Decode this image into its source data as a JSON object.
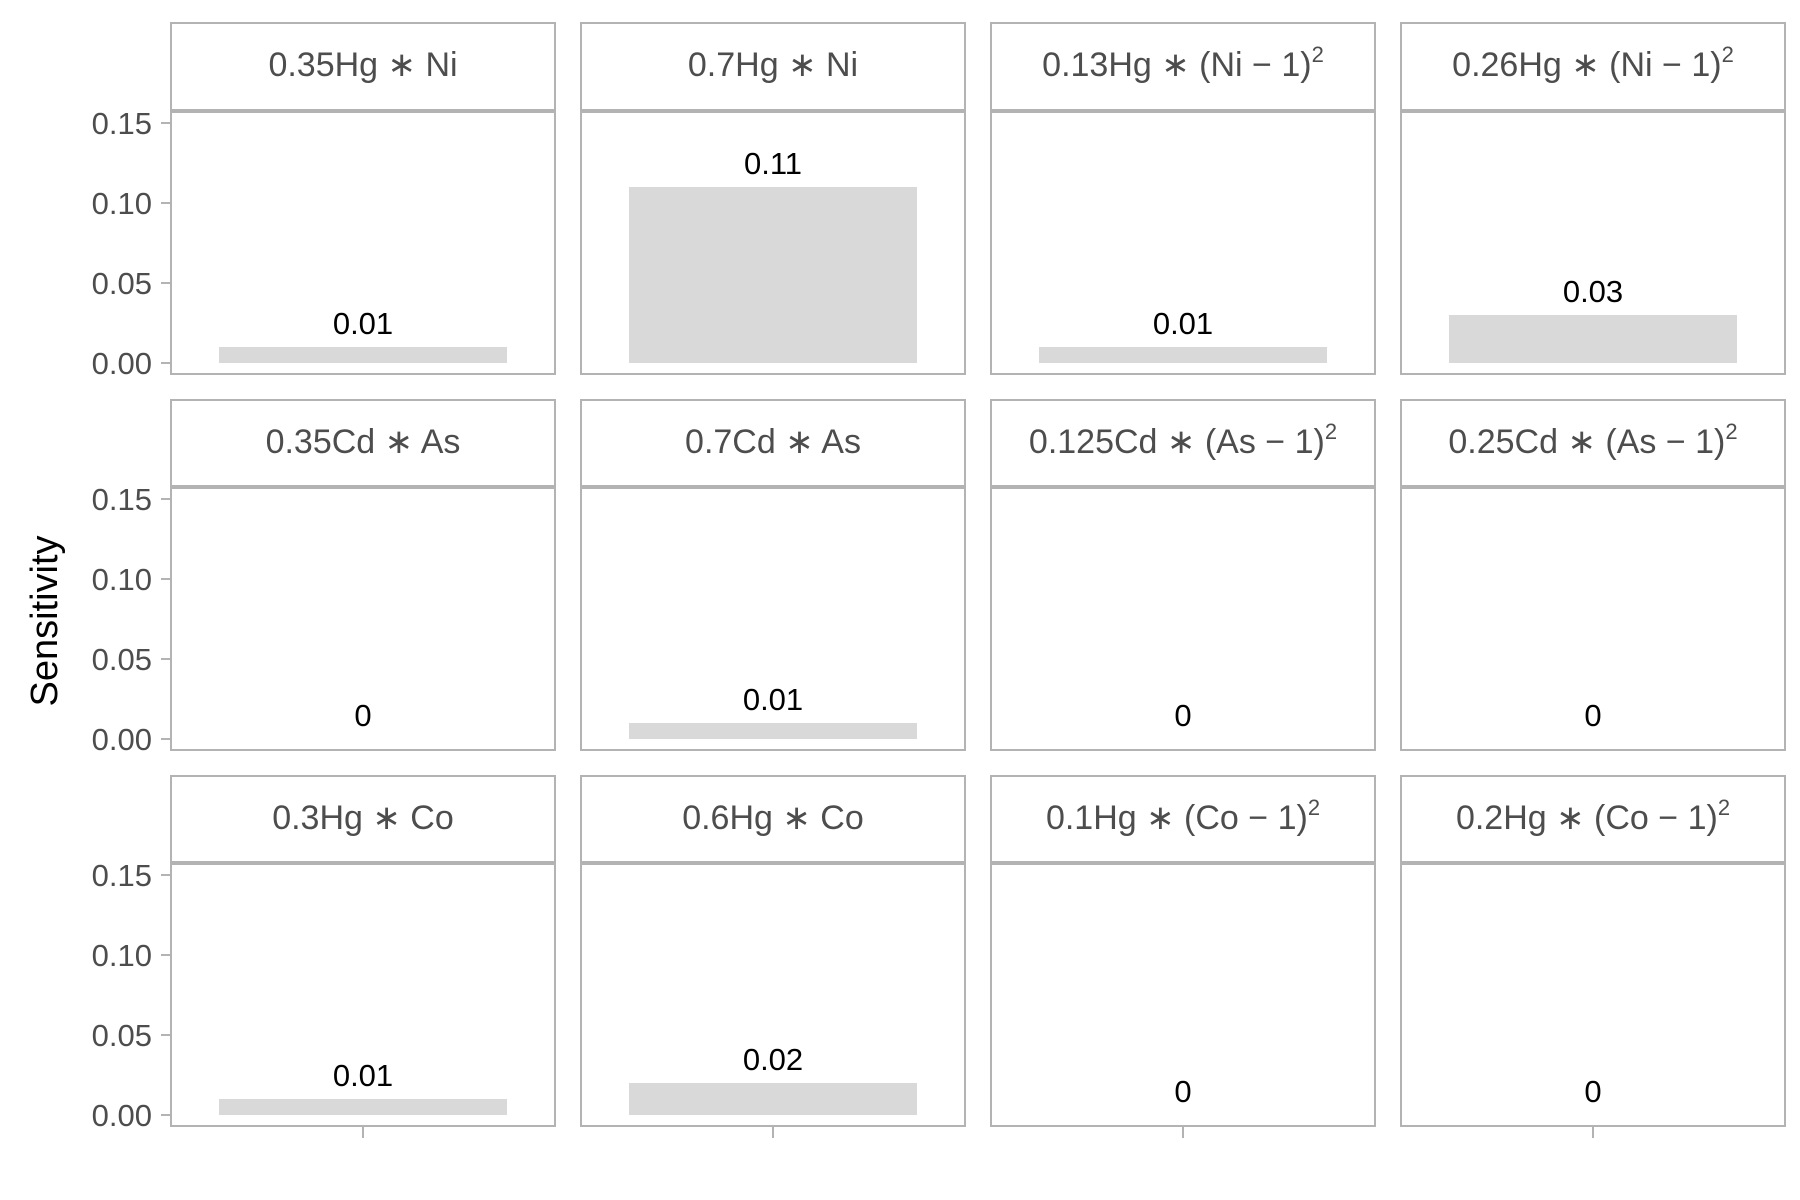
{
  "chart_data": {
    "type": "bar",
    "ylabel": "Sensitivity",
    "xlabel": "",
    "ylim": [
      0,
      0.155
    ],
    "yticks": [
      "0.00",
      "0.05",
      "0.10",
      "0.15"
    ],
    "grid": false,
    "colors": {
      "bar": "#d9d9d9",
      "panel_border": "#b3b3b3",
      "strip_fill": "#ffffff",
      "tick_text": "#4d4d4d",
      "value_text": "#000000"
    },
    "panels": [
      {
        "row": 1,
        "col": 1,
        "label": {
          "main": "0.35Hg ∗ Ni",
          "squared": false
        },
        "value": 0.01,
        "value_label": "0.01"
      },
      {
        "row": 1,
        "col": 2,
        "label": {
          "main": "0.7Hg ∗ Ni",
          "squared": false
        },
        "value": 0.11,
        "value_label": "0.11"
      },
      {
        "row": 1,
        "col": 3,
        "label": {
          "main": "0.13Hg ∗ (Ni − 1)",
          "squared": true
        },
        "value": 0.01,
        "value_label": "0.01"
      },
      {
        "row": 1,
        "col": 4,
        "label": {
          "main": "0.26Hg ∗ (Ni − 1)",
          "squared": true
        },
        "value": 0.03,
        "value_label": "0.03"
      },
      {
        "row": 2,
        "col": 1,
        "label": {
          "main": "0.35Cd ∗ As",
          "squared": false
        },
        "value": 0,
        "value_label": "0"
      },
      {
        "row": 2,
        "col": 2,
        "label": {
          "main": "0.7Cd ∗ As",
          "squared": false
        },
        "value": 0.01,
        "value_label": "0.01"
      },
      {
        "row": 2,
        "col": 3,
        "label": {
          "main": "0.125Cd ∗ (As − 1)",
          "squared": true
        },
        "value": 0,
        "value_label": "0"
      },
      {
        "row": 2,
        "col": 4,
        "label": {
          "main": "0.25Cd ∗ (As − 1)",
          "squared": true
        },
        "value": 0,
        "value_label": "0"
      },
      {
        "row": 3,
        "col": 1,
        "label": {
          "main": "0.3Hg ∗ Co",
          "squared": false
        },
        "value": 0.01,
        "value_label": "0.01"
      },
      {
        "row": 3,
        "col": 2,
        "label": {
          "main": "0.6Hg ∗ Co",
          "squared": false
        },
        "value": 0.02,
        "value_label": "0.02"
      },
      {
        "row": 3,
        "col": 3,
        "label": {
          "main": "0.1Hg ∗ (Co − 1)",
          "squared": true
        },
        "value": 0,
        "value_label": "0"
      },
      {
        "row": 3,
        "col": 4,
        "label": {
          "main": "0.2Hg ∗ (Co − 1)",
          "squared": true
        },
        "value": 0,
        "value_label": "0"
      }
    ]
  }
}
